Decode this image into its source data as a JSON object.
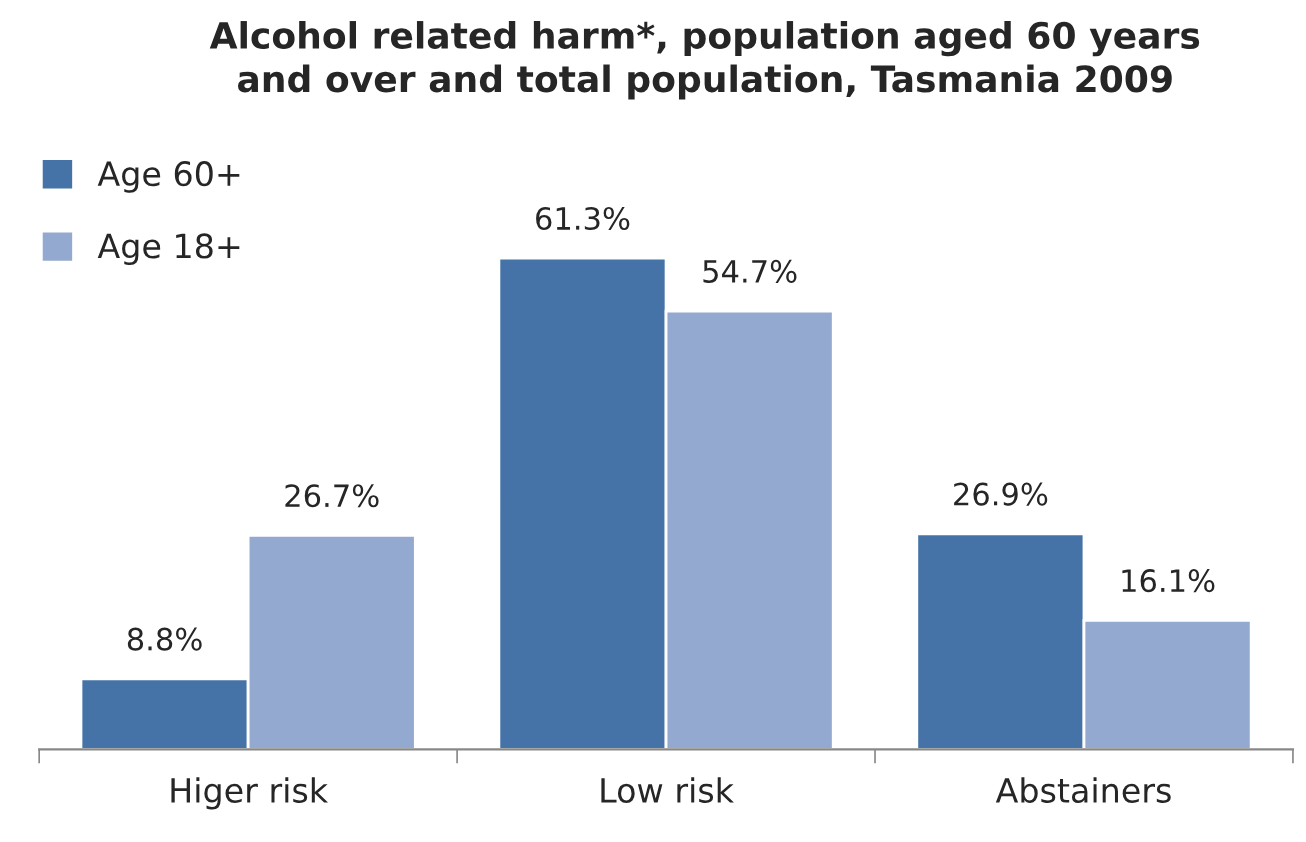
{
  "chart_data": {
    "type": "bar",
    "title": "Alcohol related harm*, population aged 60 years\nand over and total population, Tasmania 2009",
    "categories": [
      "Higer risk",
      "Low risk",
      "Abstainers"
    ],
    "series": [
      {
        "name": "Age 60+",
        "color": "#4573a7",
        "values": [
          8.8,
          61.3,
          26.9
        ],
        "value_labels": [
          "8.8%",
          "61.3%",
          "26.9%"
        ]
      },
      {
        "name": "Age 18+",
        "color": "#94a9d0",
        "values": [
          26.7,
          54.7,
          16.1
        ],
        "value_labels": [
          "26.7%",
          "54.7%",
          "16.1%"
        ]
      }
    ],
    "legend": "top left"
  }
}
